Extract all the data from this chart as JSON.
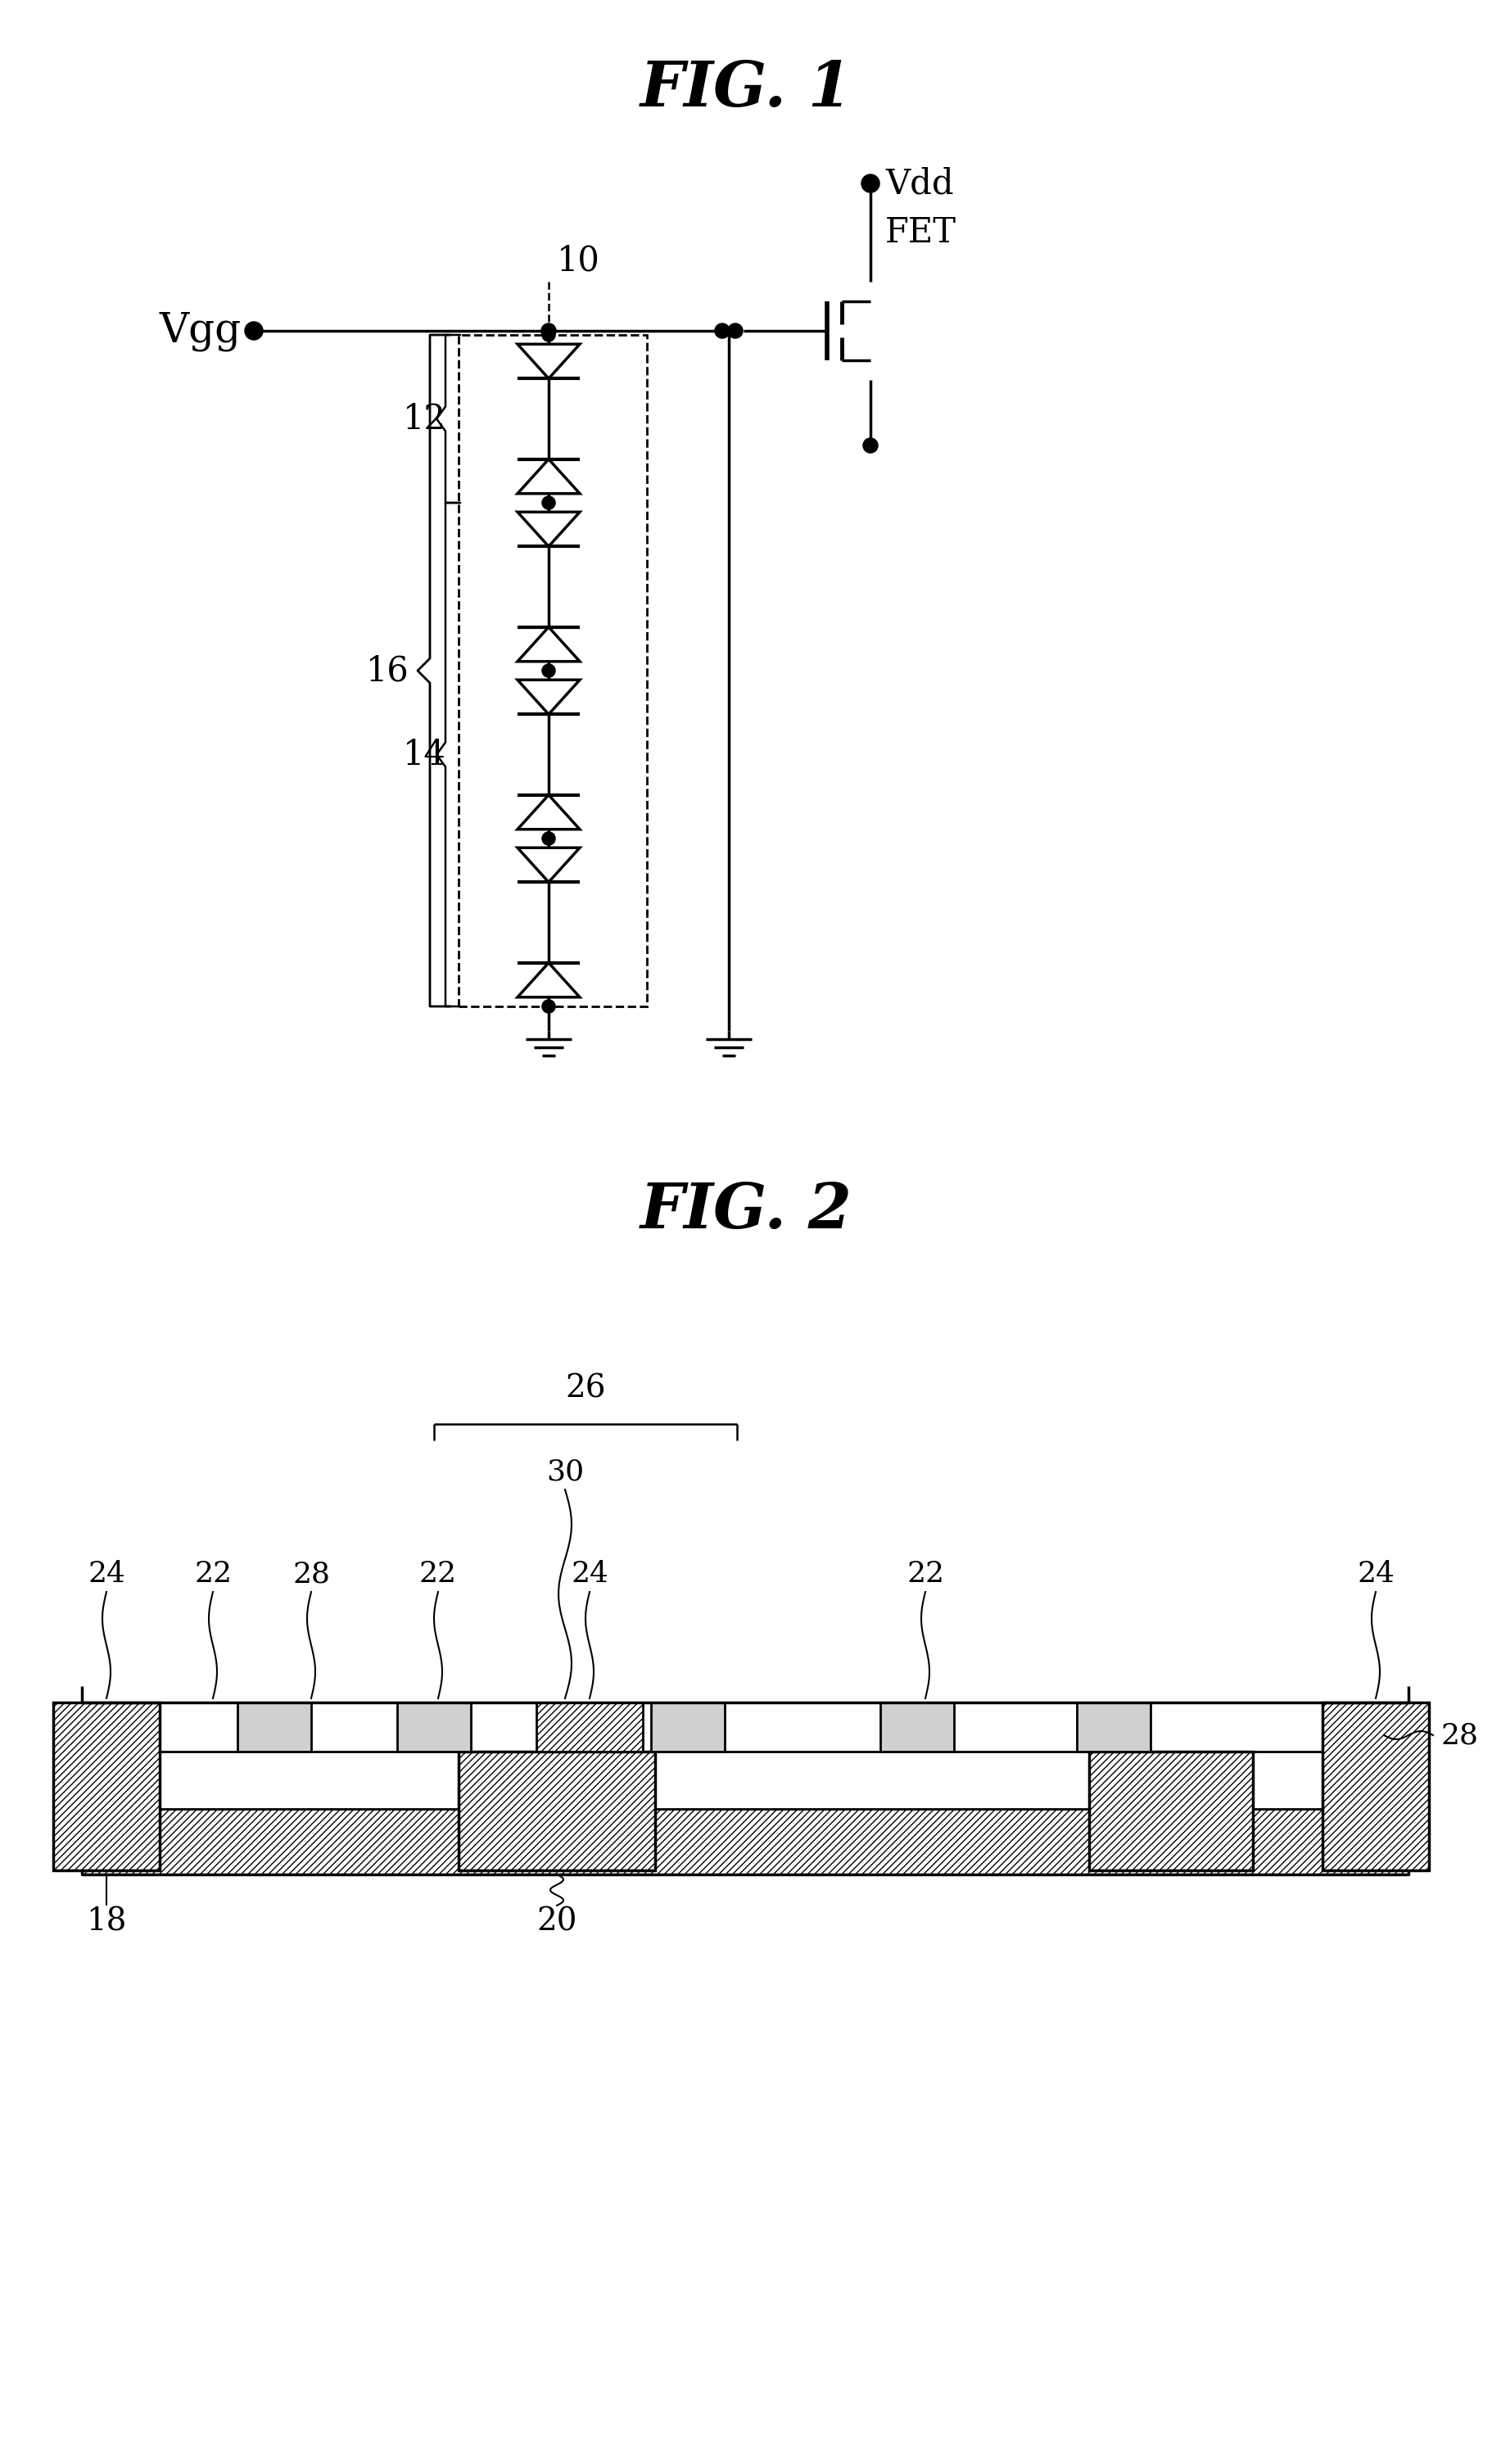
{
  "fig1_title": "FIG. 1",
  "fig2_title": "FIG. 2",
  "bg_color": "#ffffff",
  "line_color": "#000000",
  "fig1": {
    "vgg_label": "Vgg",
    "vdd_label": "Vdd",
    "fet_label": "FET",
    "label_10": "10",
    "label_12": "12",
    "label_14": "14",
    "label_16": "16"
  },
  "fig2": {
    "label_18": "18",
    "label_20": "20",
    "label_22": "22",
    "label_24": "24",
    "label_26": "26",
    "label_28": "28",
    "label_30": "30"
  }
}
